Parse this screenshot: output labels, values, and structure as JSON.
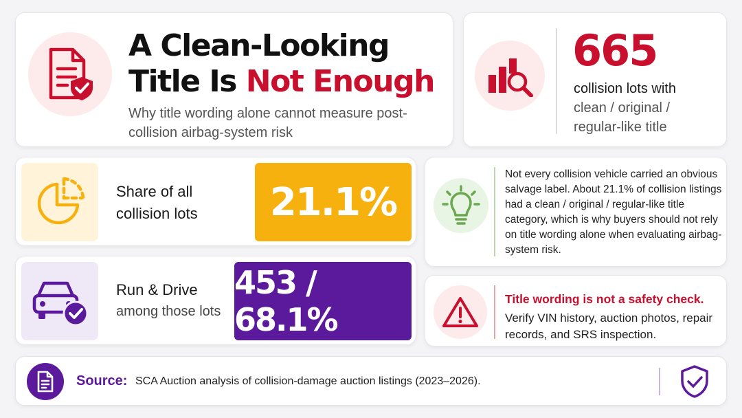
{
  "colors": {
    "accent_red": "#c8102e",
    "accent_purple": "#5b1a9b",
    "accent_amber": "#f6b10e",
    "accent_green": "#6aa84f"
  },
  "header": {
    "title_line1": "A Clean-Looking",
    "title_line2_prefix": "Title Is ",
    "title_line2_highlight": "Not Enough",
    "subtitle": "Why title wording alone cannot measure post-collision airbag-system risk",
    "icon": "document-shield-icon"
  },
  "stat": {
    "value": "665",
    "line1": "collision lots with",
    "line2": "clean / original / regular-like title",
    "icon": "bar-chart-magnifier-icon"
  },
  "share": {
    "label": "Share of all collision lots",
    "value": "21.1%",
    "icon": "pie-chart-icon"
  },
  "run_drive": {
    "title": "Run & Drive",
    "subtitle": "among those lots",
    "value": "453 / 68.1%",
    "icon": "car-check-icon"
  },
  "info": {
    "text": "Not every collision vehicle carried an obvious salvage label. About 21.1% of collision listings had a clean / original / regular-like title category, which is why buyers should not rely on title wording alone when evaluating airbag-system risk.",
    "icon": "lightbulb-icon"
  },
  "warning": {
    "title": "Title wording is not a safety check.",
    "text": "Verify VIN history, auction photos, repair records, and SRS inspection.",
    "icon": "warning-triangle-icon"
  },
  "source": {
    "label": "Source:",
    "text": "SCA Auction analysis of collision-damage auction listings (2023–2026).",
    "icon": "document-icon",
    "badge_icon": "shield-check-icon"
  }
}
